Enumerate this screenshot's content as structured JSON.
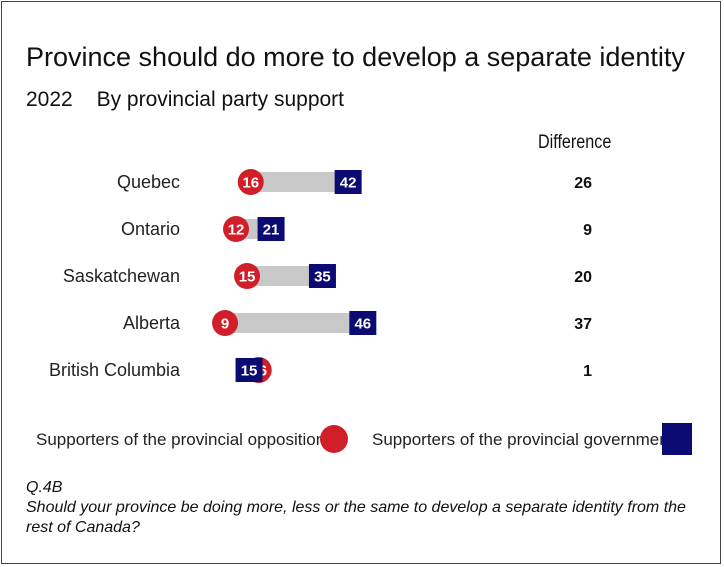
{
  "title": "Province should do more to develop a separate identity",
  "subtitle_year": "2022",
  "subtitle_text": "By provincial party support",
  "difference_header": "Difference",
  "legend": {
    "opposition": "Supporters of the provincial opposition",
    "government": "Supporters of the provincial government"
  },
  "colors": {
    "opposition": "#d11f2a",
    "government": "#0b0b73",
    "bar": "#c8c8c8"
  },
  "note": {
    "code": "Q.4B",
    "question": "Should your province be doing more, less or the same to develop a separate identity from the rest of Canada?"
  },
  "chart_data": {
    "type": "bar",
    "categories": [
      "Quebec",
      "Ontario",
      "Saskatchewan",
      "Alberta",
      "British Columbia"
    ],
    "series": [
      {
        "name": "Supporters of the provincial opposition",
        "values": [
          16,
          12,
          15,
          9,
          16
        ]
      },
      {
        "name": "Supporters of the provincial government",
        "values": [
          42,
          21,
          35,
          46,
          15
        ]
      }
    ],
    "difference": [
      "26",
      "9",
      "20",
      "37",
      "1"
    ],
    "title": "Province should do more to develop a separate identity"
  }
}
